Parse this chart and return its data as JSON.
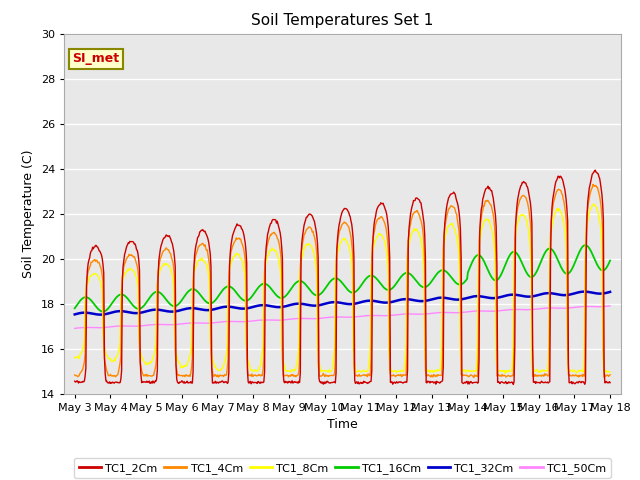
{
  "title": "Soil Temperatures Set 1",
  "xlabel": "Time",
  "ylabel": "Soil Temperature (C)",
  "ylim": [
    14,
    30
  ],
  "yticks": [
    14,
    16,
    18,
    20,
    22,
    24,
    26,
    28,
    30
  ],
  "x_labels": [
    "May 3",
    "May 4",
    "May 5",
    "May 6",
    "May 7",
    "May 8",
    "May 9",
    "May 10",
    "May 11",
    "May 12",
    "May 13",
    "May 14",
    "May 15",
    "May 16",
    "May 17",
    "May 18"
  ],
  "series_colors": {
    "TC1_2Cm": "#cc0000",
    "TC1_4Cm": "#ff8800",
    "TC1_8Cm": "#ffff00",
    "TC1_16Cm": "#00cc00",
    "TC1_32Cm": "#0000cc",
    "TC1_50Cm": "#ff88ff"
  },
  "series_linewidths": {
    "TC1_2Cm": 1.0,
    "TC1_4Cm": 1.0,
    "TC1_8Cm": 1.0,
    "TC1_16Cm": 1.3,
    "TC1_32Cm": 1.8,
    "TC1_50Cm": 1.0
  },
  "annotation_text": "SI_met",
  "annotation_color": "#cc0000",
  "annotation_bg": "#ffffcc",
  "annotation_border": "#888800",
  "plot_bg": "#e8e8e8",
  "grid_color": "#ffffff",
  "n_points": 720
}
